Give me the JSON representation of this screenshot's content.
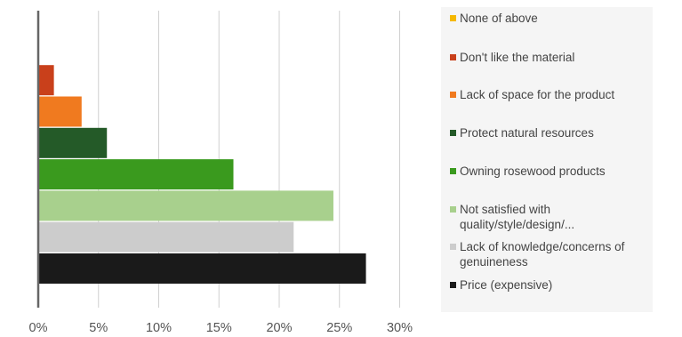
{
  "chart_data": {
    "type": "bar",
    "orientation": "horizontal",
    "x_ticks": [
      "0%",
      "5%",
      "10%",
      "15%",
      "20%",
      "25%",
      "30%"
    ],
    "xlim": [
      0,
      30
    ],
    "grid": true,
    "legend_position": "right",
    "categories": [
      "Price (expensive)",
      "Lack of knowledge/concerns of genuineness",
      "Not satisfied with quality/style/design/...",
      "Owning rosewood products",
      "Protect natural resources",
      "Lack of space for the product",
      "Don't like the material",
      "None of above"
    ],
    "values": [
      27.2,
      21.2,
      24.5,
      16.2,
      5.7,
      3.6,
      1.3,
      0
    ],
    "colors": [
      "#1a1a1a",
      "#cccccc",
      "#a8d08d",
      "#3a9a1e",
      "#245a28",
      "#f07a1f",
      "#c9401b",
      "#f5b800"
    ]
  },
  "legend": [
    {
      "label": "None of above",
      "color": "#f5b800"
    },
    {
      "label": "Don't like the material",
      "color": "#c9401b"
    },
    {
      "label": "Lack of space for the product",
      "color": "#f07a1f"
    },
    {
      "label": "Protect natural resources",
      "color": "#245a28"
    },
    {
      "label": "Owning rosewood products",
      "color": "#3a9a1e"
    },
    {
      "label": "Not satisfied with quality/style/design/...",
      "color": "#a8d08d"
    },
    {
      "label": "Lack of knowledge/concerns of genuineness",
      "color": "#cccccc"
    },
    {
      "label": "Price (expensive)",
      "color": "#1a1a1a"
    }
  ]
}
